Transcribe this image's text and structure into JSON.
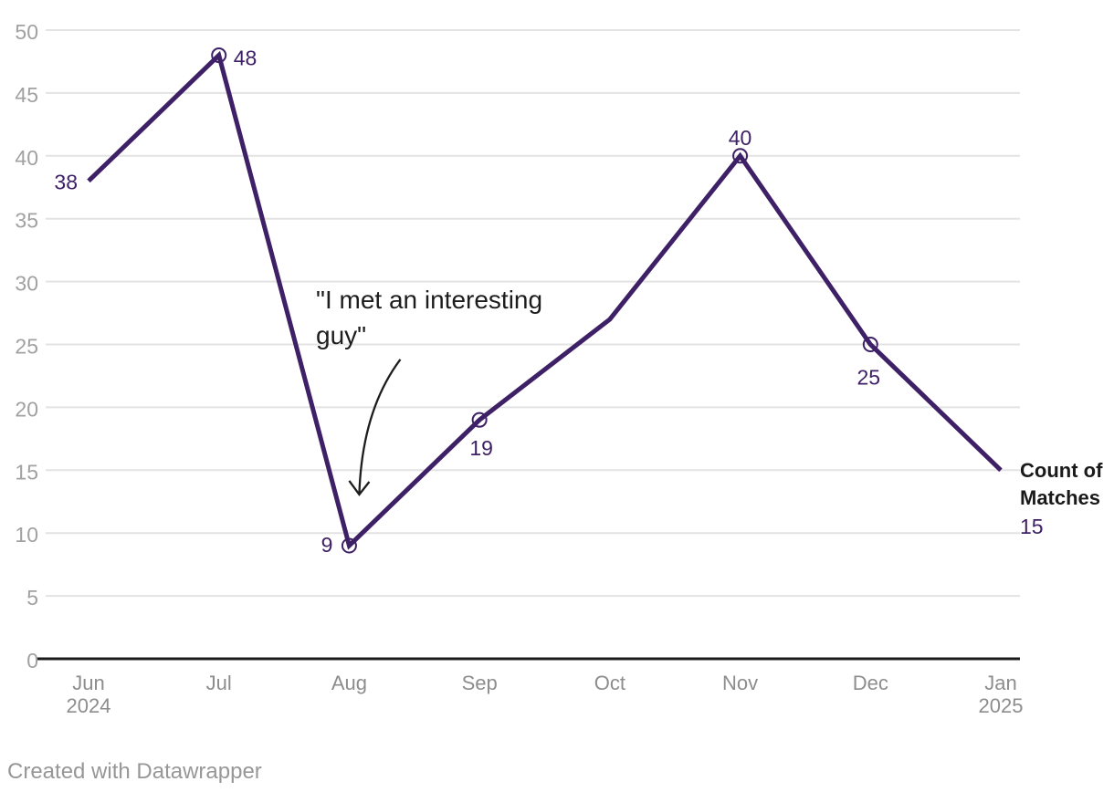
{
  "chart_data": {
    "type": "line",
    "title": "",
    "xlabel": "",
    "ylabel": "",
    "categories": [
      "Jun",
      "Jul",
      "Aug",
      "Sep",
      "Oct",
      "Nov",
      "Dec",
      "Jan"
    ],
    "category_year_labels": {
      "0": "2024",
      "7": "2025"
    },
    "series": [
      {
        "name": "Count of Matches",
        "values": [
          38,
          48,
          9,
          19,
          27,
          40,
          25,
          15
        ]
      }
    ],
    "labeled_point_indices": [
      0,
      1,
      2,
      3,
      5,
      6
    ],
    "marker_point_indices": [
      1,
      2,
      3,
      5,
      6
    ],
    "ylim": [
      0,
      50
    ],
    "y_ticks": [
      0,
      5,
      10,
      15,
      20,
      25,
      30,
      35,
      40,
      45,
      50
    ],
    "grid": "horizontal",
    "legend_position": "right-of-line-end",
    "annotation": {
      "text": "\"I met an interesting guy\"",
      "target_category": "Aug",
      "target_value": 9
    },
    "colors": {
      "line": "#3e2066",
      "value_label": "#3e2066",
      "y_tick_text": "#a1a1a1",
      "x_tick_text": "#8d8d8d",
      "grid_line": "#e3e3e3",
      "axis_line": "#1a1a1a",
      "annotation": "#1d1d1d"
    }
  },
  "legend": {
    "series_label": "Count of Matches",
    "last_value_label": "15"
  },
  "footer": {
    "credit": "Created with Datawrapper"
  }
}
